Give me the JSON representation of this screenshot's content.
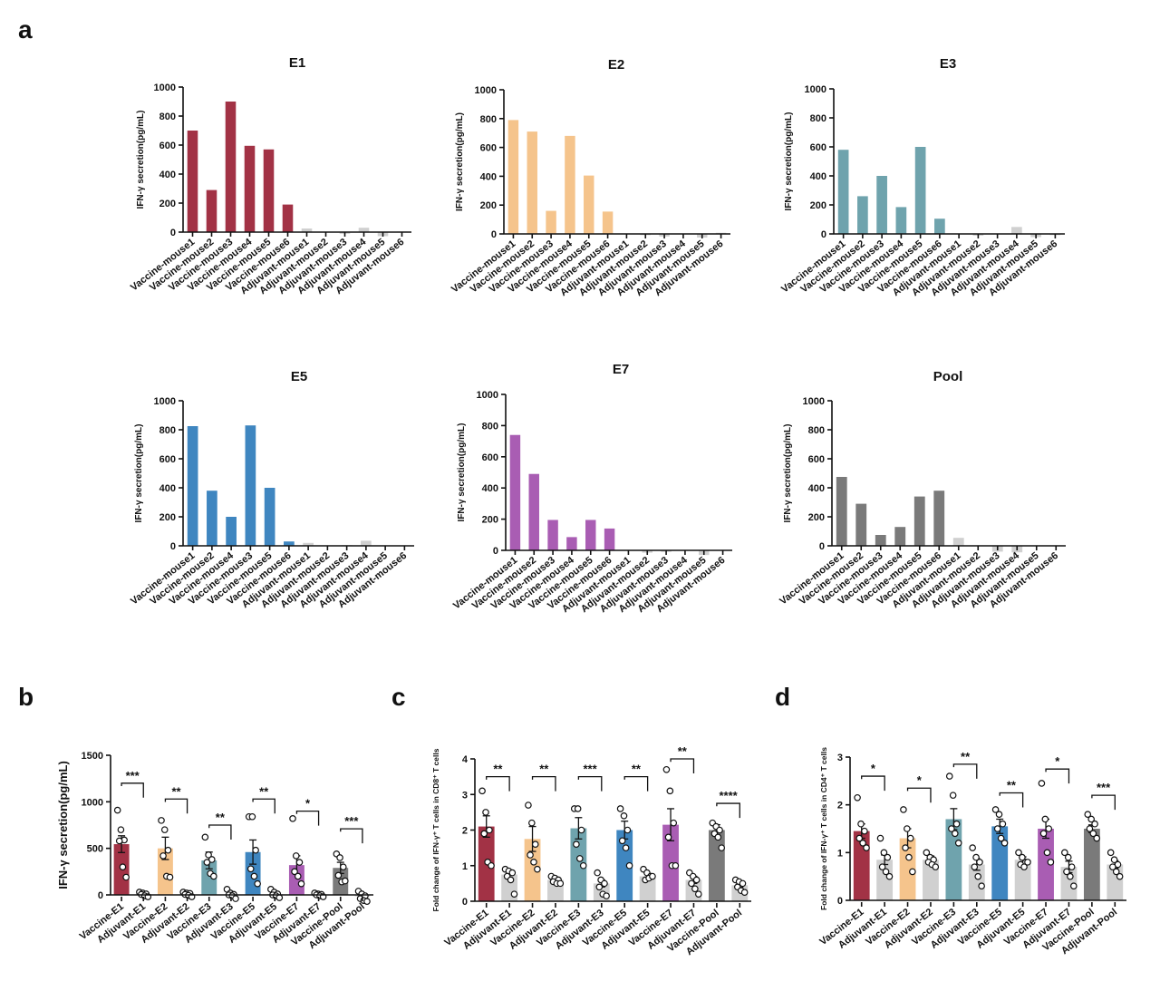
{
  "panels": {
    "a": "a",
    "b": "b",
    "c": "c",
    "d": "d"
  },
  "chart_data": [
    {
      "id": "E1",
      "panel": "a",
      "type": "bar",
      "title": "E1",
      "ylabel": "IFN-γ secretion(pg/mL)",
      "ylim": [
        0,
        1000
      ],
      "yticks": [
        0,
        200,
        400,
        600,
        800,
        1000
      ],
      "categories": [
        "Vaccine-mouse1",
        "Vaccine-mouse2",
        "Vaccine-mouse3",
        "Vaccine-mouse4",
        "Vaccine-mouse5",
        "Vaccine-mouse6",
        "Adjuvant-mouse1",
        "Adjuvant-mouse2",
        "Adjuvant-mouse3",
        "Adjuvant-mouse4",
        "Adjuvant-mouse5",
        "Adjuvant-mouse6"
      ],
      "values": [
        700,
        290,
        900,
        595,
        570,
        190,
        25,
        3,
        -12,
        30,
        -28,
        4
      ],
      "colors": [
        "#a23245",
        "#a23245",
        "#a23245",
        "#a23245",
        "#a23245",
        "#a23245",
        "#d0d0d0",
        "#d0d0d0",
        "#d0d0d0",
        "#d0d0d0",
        "#d0d0d0",
        "#d0d0d0"
      ]
    },
    {
      "id": "E2",
      "panel": "a",
      "type": "bar",
      "title": "E2",
      "ylabel": "IFN-γ secretion(pg/mL)",
      "ylim": [
        0,
        1000
      ],
      "yticks": [
        0,
        200,
        400,
        600,
        800,
        1000
      ],
      "categories": [
        "Vaccine-mouse1",
        "Vaccine-mouse2",
        "Vaccine-mouse3",
        "Vaccine-mouse4",
        "Vaccine-mouse5",
        "Vaccine-mouse6",
        "Adjuvant-mouse1",
        "Adjuvant-mouse2",
        "Adjuvant-mouse3",
        "Adjuvant-mouse4",
        "Adjuvant-mouse5",
        "Adjuvant-mouse6"
      ],
      "values": [
        790,
        710,
        160,
        680,
        405,
        155,
        2,
        -8,
        -18,
        3,
        -25,
        8
      ],
      "colors": [
        "#f5c48c",
        "#f5c48c",
        "#f5c48c",
        "#f5c48c",
        "#f5c48c",
        "#f5c48c",
        "#d0d0d0",
        "#d0d0d0",
        "#d0d0d0",
        "#d0d0d0",
        "#d0d0d0",
        "#d0d0d0"
      ]
    },
    {
      "id": "E3",
      "panel": "a",
      "type": "bar",
      "title": "E3",
      "ylabel": "IFN-γ secretion(pg/mL)",
      "ylim": [
        0,
        1000
      ],
      "yticks": [
        0,
        200,
        400,
        600,
        800,
        1000
      ],
      "categories": [
        "Vaccine-mouse1",
        "Vaccine-mouse2",
        "Vaccine-mouse3",
        "Vaccine-mouse4",
        "Vaccine-mouse5",
        "Vaccine-mouse6",
        "Adjuvant-mouse1",
        "Adjuvant-mouse2",
        "Adjuvant-mouse3",
        "Adjuvant-mouse4",
        "Adjuvant-mouse5",
        "Adjuvant-mouse6"
      ],
      "values": [
        580,
        260,
        400,
        185,
        600,
        105,
        3,
        -12,
        2,
        48,
        -22,
        -8
      ],
      "colors": [
        "#6fa3ad",
        "#6fa3ad",
        "#6fa3ad",
        "#6fa3ad",
        "#6fa3ad",
        "#6fa3ad",
        "#d0d0d0",
        "#d0d0d0",
        "#d0d0d0",
        "#d0d0d0",
        "#d0d0d0",
        "#d0d0d0"
      ]
    },
    {
      "id": "E5",
      "panel": "a",
      "type": "bar",
      "title": "E5",
      "ylabel": "IFN-γ secretion(pg/mL)",
      "ylim": [
        0,
        1000
      ],
      "yticks": [
        0,
        200,
        400,
        600,
        800,
        1000
      ],
      "categories": [
        "Vaccine-mouse1",
        "Vaccine-mouse2",
        "Vaccine-mouse4",
        "Vaccine-mouse3",
        "Vaccine-mouse5",
        "Vaccine-mouse6",
        "Adjuvant-mouse1",
        "Adjuvant-mouse2",
        "Adjuvant-mouse3",
        "Adjuvant-mouse4",
        "Adjuvant-mouse5",
        "Adjuvant-mouse6"
      ],
      "values": [
        825,
        380,
        200,
        830,
        400,
        30,
        20,
        3,
        5,
        35,
        2,
        3
      ],
      "colors": [
        "#3f86c0",
        "#3f86c0",
        "#3f86c0",
        "#3f86c0",
        "#3f86c0",
        "#3f86c0",
        "#d0d0d0",
        "#d0d0d0",
        "#d0d0d0",
        "#d0d0d0",
        "#d0d0d0",
        "#d0d0d0"
      ]
    },
    {
      "id": "E7",
      "panel": "a",
      "type": "bar",
      "title": "E7",
      "ylabel": "IFN-γ secretion(pg/mL)",
      "ylim": [
        0,
        1000
      ],
      "yticks": [
        0,
        200,
        400,
        600,
        800,
        1000
      ],
      "categories": [
        "Vaccine-mouse1",
        "Vaccine-mouse2",
        "Vaccine-mouse3",
        "Vaccine-mouse4",
        "Vaccine-mouse5",
        "Vaccine-mouse6",
        "Adjuvant-mouse1",
        "Adjuvant-mouse2",
        "Adjuvant-mouse3",
        "Adjuvant-mouse4",
        "Adjuvant-mouse5",
        "Adjuvant-mouse6"
      ],
      "values": [
        740,
        490,
        195,
        85,
        195,
        140,
        2,
        -15,
        -10,
        3,
        -30,
        2
      ],
      "colors": [
        "#a95db3",
        "#a95db3",
        "#a95db3",
        "#a95db3",
        "#a95db3",
        "#a95db3",
        "#d0d0d0",
        "#d0d0d0",
        "#d0d0d0",
        "#d0d0d0",
        "#d0d0d0",
        "#d0d0d0"
      ]
    },
    {
      "id": "Pool",
      "panel": "a",
      "type": "bar",
      "title": "Pool",
      "ylabel": "IFN-γ secretion(pg/mL)",
      "ylim": [
        0,
        1000
      ],
      "yticks": [
        0,
        200,
        400,
        600,
        800,
        1000
      ],
      "categories": [
        "Vaccine-mouse1",
        "Vaccine-mouse2",
        "Vaccine-mouse3",
        "Vaccine-mouse4",
        "Vaccine-mouse5",
        "Vaccine-mouse6",
        "Adjuvant-mouse1",
        "Adjuvant-mouse2",
        "Adjuvant-mouse3",
        "Adjuvant-mouse4",
        "Adjuvant-mouse5",
        "Adjuvant-mouse6"
      ],
      "values": [
        475,
        290,
        75,
        130,
        340,
        380,
        55,
        2,
        -40,
        -45,
        2,
        3
      ],
      "colors": [
        "#7a7a7a",
        "#7a7a7a",
        "#7a7a7a",
        "#7a7a7a",
        "#7a7a7a",
        "#7a7a7a",
        "#d0d0d0",
        "#d0d0d0",
        "#d0d0d0",
        "#d0d0d0",
        "#d0d0d0",
        "#d0d0d0"
      ]
    },
    {
      "id": "B",
      "panel": "b",
      "type": "bar",
      "title": "",
      "ylabel": "IFN-γ secretion(pg/mL)",
      "ylim": [
        0,
        1500
      ],
      "yticks": [
        0,
        500,
        1000,
        1500
      ],
      "categories": [
        "Vaccine-E1",
        "Adjuvant-E1",
        "Vaccine-E2",
        "Adjuvant-E2",
        "Vaccine-E3",
        "Adjuvant-E3",
        "Vaccine-E5",
        "Adjuvant-E5",
        "Vaccine-E7",
        "Adjuvant-E7",
        "Vaccine-Pool",
        "Adjuvant-Pool"
      ],
      "values": [
        545,
        10,
        500,
        10,
        370,
        5,
        460,
        10,
        320,
        5,
        290,
        -15
      ],
      "errors": [
        90,
        20,
        120,
        15,
        90,
        15,
        130,
        20,
        100,
        10,
        60,
        20
      ],
      "points": [
        [
          910,
          700,
          590,
          580,
          300,
          190
        ],
        [
          30,
          20,
          10,
          5,
          -10,
          -20
        ],
        [
          800,
          700,
          480,
          420,
          200,
          190
        ],
        [
          30,
          20,
          15,
          5,
          -5,
          -20
        ],
        [
          620,
          430,
          380,
          350,
          230,
          200
        ],
        [
          60,
          20,
          5,
          0,
          -10,
          -40
        ],
        [
          840,
          840,
          480,
          280,
          200,
          120
        ],
        [
          60,
          30,
          10,
          0,
          -10,
          -30
        ],
        [
          820,
          420,
          350,
          250,
          200,
          120
        ],
        [
          20,
          10,
          5,
          0,
          -10,
          -20
        ],
        [
          440,
          400,
          300,
          210,
          140,
          150
        ],
        [
          40,
          10,
          -10,
          -40,
          -60,
          -70
        ]
      ],
      "colors": [
        "#a23245",
        "#d0d0d0",
        "#f5c48c",
        "#d0d0d0",
        "#6fa3ad",
        "#d0d0d0",
        "#3f86c0",
        "#d0d0d0",
        "#a95db3",
        "#d0d0d0",
        "#7a7a7a",
        "#d0d0d0"
      ],
      "significance": [
        {
          "pair": [
            0,
            1
          ],
          "label": "***",
          "level": 1200
        },
        {
          "pair": [
            2,
            3
          ],
          "label": "**",
          "level": 1030
        },
        {
          "pair": [
            4,
            5
          ],
          "label": "**",
          "level": 750
        },
        {
          "pair": [
            6,
            7
          ],
          "label": "**",
          "level": 1030
        },
        {
          "pair": [
            8,
            9
          ],
          "label": "*",
          "level": 900
        },
        {
          "pair": [
            10,
            11
          ],
          "label": "***",
          "level": 710
        }
      ]
    },
    {
      "id": "C",
      "panel": "c",
      "type": "bar",
      "title": "",
      "ylabel": "Fold change of IFN-γ⁺ T cells in CD8⁺ T cells",
      "ylim": [
        0,
        4
      ],
      "yticks": [
        0,
        1,
        2,
        3,
        4
      ],
      "categories": [
        "Vaccine-E1",
        "Adjuvant-E1",
        "Vaccine-E2",
        "Adjuvant-E2",
        "Vaccine-E3",
        "Adjuvant-E3",
        "Vaccine-E5",
        "Adjuvant-E5",
        "Vaccine-E7",
        "Adjuvant-E7",
        "Vaccine-Pool",
        "Adjuvant-Pool"
      ],
      "values": [
        2.1,
        0.75,
        1.75,
        0.6,
        2.05,
        0.5,
        2.0,
        0.7,
        2.15,
        0.6,
        2.0,
        0.45
      ],
      "errors": [
        0.3,
        0.1,
        0.35,
        0.05,
        0.3,
        0.1,
        0.25,
        0.08,
        0.45,
        0.1,
        0.15,
        0.06
      ],
      "points": [
        [
          3.1,
          2.5,
          2.0,
          1.9,
          1.1,
          1.0
        ],
        [
          0.9,
          0.85,
          0.8,
          0.7,
          0.6,
          0.2
        ],
        [
          2.7,
          2.2,
          1.6,
          1.3,
          1.1,
          0.9
        ],
        [
          0.7,
          0.65,
          0.6,
          0.55,
          0.5,
          0.5
        ],
        [
          2.6,
          2.6,
          2.0,
          1.6,
          1.2,
          1.0
        ],
        [
          0.8,
          0.6,
          0.5,
          0.4,
          0.2,
          0.15
        ],
        [
          2.6,
          2.4,
          2.0,
          1.7,
          1.5,
          1.0
        ],
        [
          0.9,
          0.8,
          0.7,
          0.6,
          0.65,
          0.7
        ],
        [
          3.7,
          3.1,
          2.2,
          1.8,
          1.0,
          1.0
        ],
        [
          0.8,
          0.7,
          0.6,
          0.5,
          0.35,
          0.2
        ],
        [
          2.2,
          2.1,
          2.0,
          1.9,
          1.8,
          1.5
        ],
        [
          0.6,
          0.55,
          0.5,
          0.4,
          0.3,
          0.25
        ]
      ],
      "colors": [
        "#a23245",
        "#d0d0d0",
        "#f5c48c",
        "#d0d0d0",
        "#6fa3ad",
        "#d0d0d0",
        "#3f86c0",
        "#d0d0d0",
        "#a95db3",
        "#d0d0d0",
        "#7a7a7a",
        "#d0d0d0"
      ],
      "significance": [
        {
          "pair": [
            0,
            1
          ],
          "label": "**",
          "level": 3.5
        },
        {
          "pair": [
            2,
            3
          ],
          "label": "**",
          "level": 3.5
        },
        {
          "pair": [
            4,
            5
          ],
          "label": "***",
          "level": 3.5
        },
        {
          "pair": [
            6,
            7
          ],
          "label": "**",
          "level": 3.5
        },
        {
          "pair": [
            8,
            9
          ],
          "label": "**",
          "level": 4.0
        },
        {
          "pair": [
            10,
            11
          ],
          "label": "****",
          "level": 2.75
        }
      ]
    },
    {
      "id": "D",
      "panel": "d",
      "type": "bar",
      "title": "",
      "ylabel": "Fold change of IFN-γ⁺ T cells in CD4⁺ T cells",
      "ylim": [
        0,
        3
      ],
      "yticks": [
        0,
        1,
        2,
        3
      ],
      "categories": [
        "Vaccine-E1",
        "Adjuvant-E1",
        "Vaccine-E2",
        "Adjuvant-E2",
        "Vaccine-E3",
        "Adjuvant-E3",
        "Vaccine-E5",
        "Adjuvant-E5",
        "Vaccine-E7",
        "Adjuvant-E7",
        "Vaccine-Pool",
        "Adjuvant-Pool"
      ],
      "values": [
        1.45,
        0.85,
        1.3,
        0.85,
        1.7,
        0.75,
        1.55,
        0.85,
        1.5,
        0.7,
        1.5,
        0.75
      ],
      "errors": [
        0.15,
        0.1,
        0.2,
        0.08,
        0.22,
        0.12,
        0.15,
        0.06,
        0.2,
        0.12,
        0.08,
        0.08
      ],
      "points": [
        [
          2.15,
          1.6,
          1.45,
          1.3,
          1.2,
          1.1
        ],
        [
          1.3,
          1.0,
          0.9,
          0.7,
          0.6,
          0.5
        ],
        [
          1.9,
          1.5,
          1.3,
          1.1,
          0.9,
          0.6
        ],
        [
          1.0,
          0.9,
          0.85,
          0.8,
          0.75,
          0.7
        ],
        [
          2.6,
          2.2,
          1.6,
          1.5,
          1.4,
          1.2
        ],
        [
          1.1,
          0.9,
          0.8,
          0.7,
          0.5,
          0.3
        ],
        [
          1.9,
          1.8,
          1.6,
          1.5,
          1.3,
          1.2
        ],
        [
          1.0,
          0.9,
          0.8,
          0.75,
          0.7,
          0.8
        ],
        [
          2.45,
          1.7,
          1.5,
          1.4,
          1.0,
          0.8
        ],
        [
          1.0,
          0.9,
          0.7,
          0.6,
          0.5,
          0.3
        ],
        [
          1.8,
          1.7,
          1.6,
          1.5,
          1.4,
          1.3
        ],
        [
          1.0,
          0.85,
          0.75,
          0.7,
          0.6,
          0.5
        ]
      ],
      "colors": [
        "#a23245",
        "#d0d0d0",
        "#f5c48c",
        "#d0d0d0",
        "#6fa3ad",
        "#d0d0d0",
        "#3f86c0",
        "#d0d0d0",
        "#a95db3",
        "#d0d0d0",
        "#7a7a7a",
        "#d0d0d0"
      ],
      "significance": [
        {
          "pair": [
            0,
            1
          ],
          "label": "*",
          "level": 2.6
        },
        {
          "pair": [
            2,
            3
          ],
          "label": "*",
          "level": 2.35
        },
        {
          "pair": [
            4,
            5
          ],
          "label": "**",
          "level": 2.85
        },
        {
          "pair": [
            6,
            7
          ],
          "label": "**",
          "level": 2.25
        },
        {
          "pair": [
            8,
            9
          ],
          "label": "*",
          "level": 2.75
        },
        {
          "pair": [
            10,
            11
          ],
          "label": "***",
          "level": 2.2
        }
      ]
    }
  ]
}
